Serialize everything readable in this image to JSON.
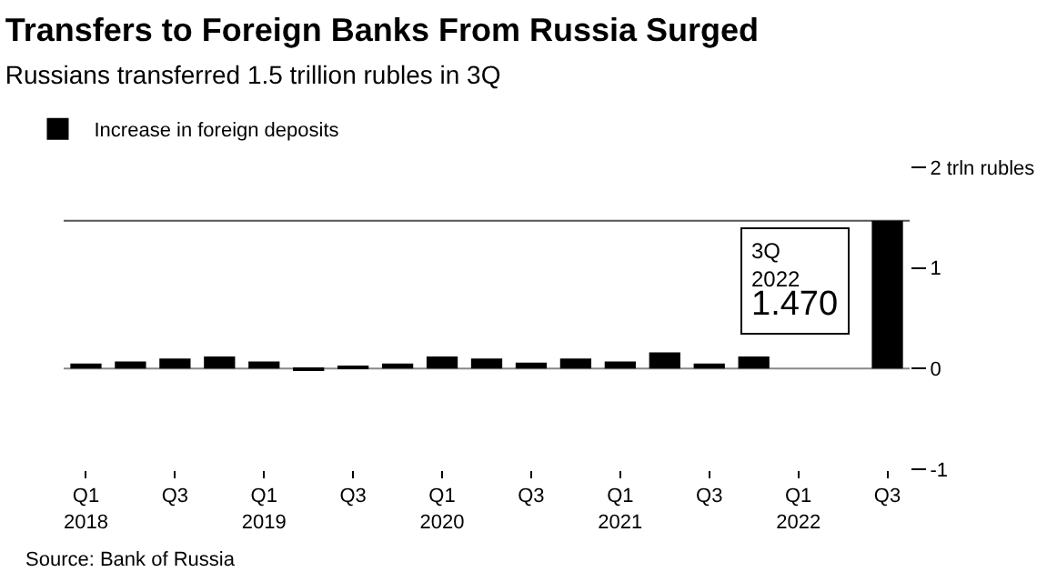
{
  "chart_data": {
    "type": "bar",
    "title": "Transfers to Foreign Banks From Russia Surged",
    "subtitle": "Russians transferred 1.5 trillion rubles in 3Q",
    "categories": [
      "Q1\n2018",
      null,
      "Q3",
      null,
      "Q1\n2019",
      null,
      "Q3",
      null,
      "Q1\n2020",
      null,
      "Q3",
      null,
      "Q1\n2021",
      null,
      "Q3",
      null,
      "Q1\n2022",
      null,
      "Q3"
    ],
    "series": [
      {
        "name": "Increase in foreign deposits",
        "color": "#000000",
        "values": [
          0.05,
          0.07,
          0.1,
          0.12,
          0.07,
          -0.01,
          0.02,
          0.05,
          0.12,
          0.1,
          0.06,
          0.1,
          0.07,
          0.16,
          0.05,
          0.12,
          null,
          null,
          1.47
        ]
      }
    ],
    "ylim": [
      -1,
      2
    ],
    "yticks": [
      -1,
      0,
      {
        "value": 1,
        "label": "1"
      },
      {
        "value": 2,
        "label": "2 trln rubles"
      }
    ],
    "ref_lines": [
      {
        "axis": "y",
        "value": 0,
        "color": "#888888"
      },
      {
        "axis": "y",
        "value": 1.47,
        "color": "#555555"
      }
    ],
    "annotations": [
      "3Q\n2022\n1.470",
      "Source: Bank of Russia"
    ],
    "grid": false,
    "legend": "top left"
  }
}
